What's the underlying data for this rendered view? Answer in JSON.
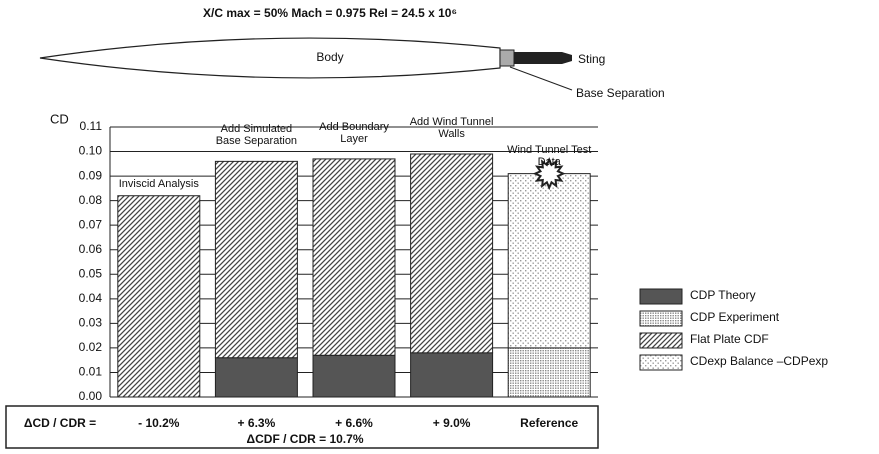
{
  "header": {
    "conditions": "X/C max = 50%     Mach = 0.975     ReI = 24.5 x 10⁶",
    "body": "Body",
    "sting": "Sting",
    "base_separation": "Base Separation"
  },
  "chart_data": {
    "type": "stacked_bar",
    "y_label": "CD",
    "categories": [
      "Inviscid Analysis",
      "Add Simulated Base Separation",
      "Add Boundary Layer",
      "Add Wind Tunnel Walls",
      "Wind Tunnel Test Data"
    ],
    "series": [
      {
        "name": "CDP Theory",
        "color": "#555555",
        "pattern": "solid",
        "values": [
          null,
          0.016,
          0.017,
          0.018,
          null
        ]
      },
      {
        "name": "CDP  Experiment",
        "color": "#8a8a8a",
        "pattern": "dense",
        "values": [
          null,
          null,
          null,
          null,
          0.02
        ]
      },
      {
        "name": "Flat Plate CDF",
        "color": "#444444",
        "pattern": "hatch",
        "values": [
          0.082,
          0.08,
          0.08,
          0.081,
          null
        ]
      },
      {
        "name": "CDexp Balance –CDPexp",
        "color": "#9a9a9a",
        "pattern": "dots",
        "values": [
          null,
          null,
          null,
          null,
          0.071
        ]
      }
    ],
    "ylim": [
      0,
      0.11
    ],
    "yticks": [
      {
        "value": 0,
        "label": "0.00"
      },
      0.01,
      0.02,
      0.03,
      0.04,
      0.05,
      0.06,
      0.07,
      0.08,
      0.09,
      {
        "value": 0.1,
        "label": "0.10"
      },
      0.11
    ],
    "grid": true,
    "legend": "right"
  },
  "delta_row": {
    "label": "ΔCD / CDR =",
    "cells": [
      "- 10.2%",
      "+ 6.3%",
      "+ 6.6%",
      "+ 9.0%",
      "Reference"
    ],
    "note": "ΔCDF / CDR = 10.7%"
  }
}
